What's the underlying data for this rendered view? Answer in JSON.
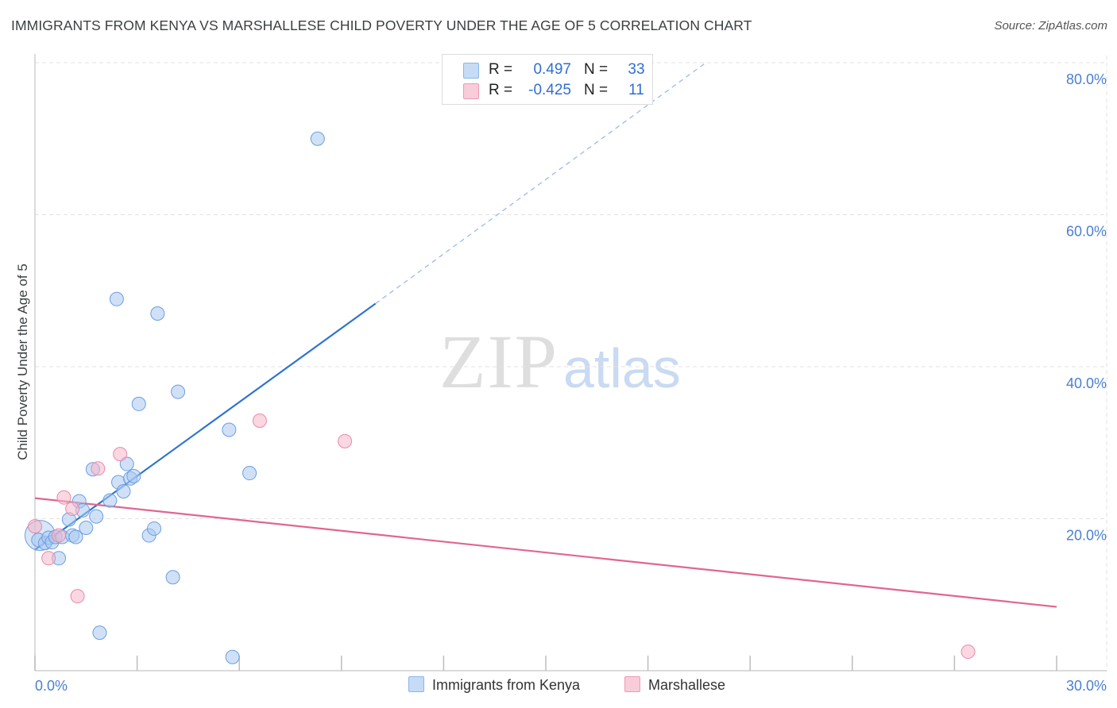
{
  "title": "IMMIGRANTS FROM KENYA VS MARSHALLESE CHILD POVERTY UNDER THE AGE OF 5 CORRELATION CHART",
  "source": "Source: ZipAtlas.com",
  "watermark": {
    "zip": "ZIP",
    "atlas": "atlas"
  },
  "legend": {
    "rows": [
      {
        "r_label": "R =",
        "r_value": "0.497",
        "n_label": "N =",
        "n_value": "33",
        "color": "#a9c8f0"
      },
      {
        "r_label": "R =",
        "r_value": "-0.425",
        "n_label": "N =",
        "n_value": "11",
        "color": "#f5b6c8"
      }
    ]
  },
  "bottom_legend": {
    "kenya": "Immigrants from Kenya",
    "marshallese": "Marshallese"
  },
  "colors": {
    "kenya_fill": "#a9c8f0",
    "kenya_stroke": "#6a9ee0",
    "kenya_line": "#2f74d0",
    "marsh_fill": "#f5b6c8",
    "marsh_stroke": "#e68aa8",
    "marsh_line": "#e0668f",
    "grid": "#e2e2e2",
    "tick_label": "#4a7fd0"
  },
  "chart_data": {
    "type": "scatter",
    "title": "IMMIGRANTS FROM KENYA VS MARSHALLESE CHILD POVERTY UNDER THE AGE OF 5 CORRELATION CHART",
    "xlabel": "",
    "ylabel": "Child Poverty Under the Age of 5",
    "xlim": [
      0,
      30
    ],
    "ylim": [
      0,
      80
    ],
    "x_tick_labels": [
      "0.0%",
      "30.0%"
    ],
    "y_ticks": [
      20,
      40,
      60,
      80
    ],
    "y_tick_labels": [
      "20.0%",
      "40.0%",
      "60.0%",
      "80.0%"
    ],
    "grid": true,
    "series": [
      {
        "name": "Immigrants from Kenya",
        "r": 0.497,
        "n": 33,
        "points": [
          [
            0.1,
            17.2
          ],
          [
            0.3,
            16.8
          ],
          [
            0.4,
            17.5
          ],
          [
            0.5,
            16.9
          ],
          [
            0.6,
            17.6
          ],
          [
            0.7,
            14.8
          ],
          [
            0.8,
            17.6
          ],
          [
            1.0,
            19.9
          ],
          [
            1.1,
            17.8
          ],
          [
            1.2,
            17.6
          ],
          [
            1.3,
            22.3
          ],
          [
            1.4,
            21.1
          ],
          [
            1.5,
            18.8
          ],
          [
            1.7,
            26.5
          ],
          [
            1.8,
            20.3
          ],
          [
            1.9,
            5.0
          ],
          [
            2.2,
            22.4
          ],
          [
            2.4,
            48.9
          ],
          [
            2.45,
            24.8
          ],
          [
            2.6,
            23.6
          ],
          [
            2.7,
            27.2
          ],
          [
            2.8,
            25.3
          ],
          [
            2.9,
            25.6
          ],
          [
            3.05,
            35.1
          ],
          [
            3.35,
            17.8
          ],
          [
            3.5,
            18.7
          ],
          [
            3.6,
            47.0
          ],
          [
            4.05,
            12.3
          ],
          [
            4.2,
            36.7
          ],
          [
            5.7,
            31.7
          ],
          [
            5.8,
            1.8
          ],
          [
            6.3,
            26.0
          ],
          [
            8.3,
            70.0
          ]
        ],
        "trend": {
          "x0": 0,
          "y0": 15.9,
          "x1": 10.0,
          "y1": 48.3,
          "extends_dashed_to": [
            19.7,
            80.0
          ]
        }
      },
      {
        "name": "Marshallese",
        "r": -0.425,
        "n": 11,
        "points": [
          [
            0.0,
            19.0
          ],
          [
            0.4,
            14.8
          ],
          [
            0.7,
            17.8
          ],
          [
            0.85,
            22.8
          ],
          [
            1.1,
            21.3
          ],
          [
            1.25,
            9.8
          ],
          [
            1.85,
            26.6
          ],
          [
            2.5,
            28.5
          ],
          [
            6.6,
            32.9
          ],
          [
            9.1,
            30.2
          ],
          [
            27.4,
            2.5
          ]
        ],
        "trend": {
          "x0": 0,
          "y0": 22.7,
          "x1": 30.0,
          "y1": 8.4
        }
      }
    ]
  }
}
